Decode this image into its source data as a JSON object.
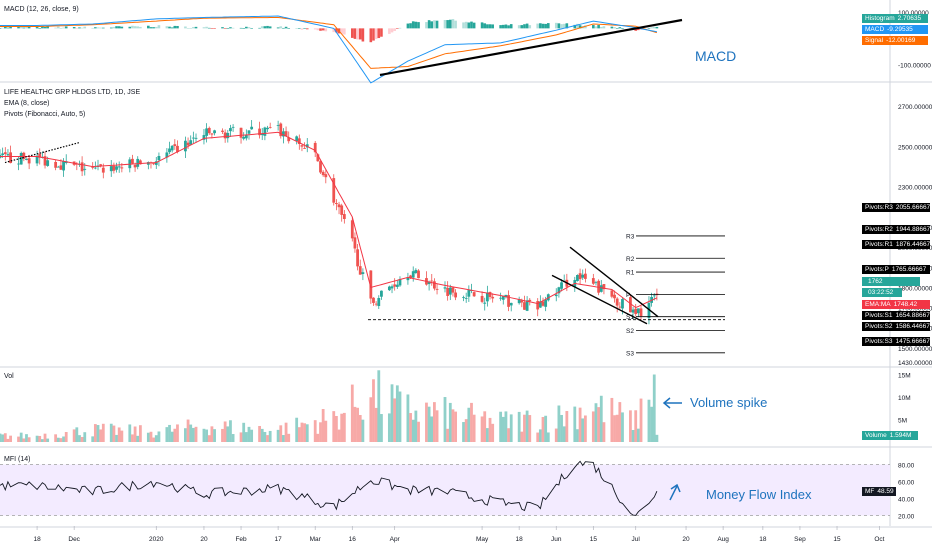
{
  "panes": {
    "macd": {
      "label": "MACD (12, 26, close, 9)",
      "annotation": "MACD",
      "axis_ticks": [
        "100.00000",
        "0.00000",
        "-100.00000"
      ],
      "legend": [
        {
          "key": "Histogram",
          "value": "2.70635",
          "color": "#26a69a"
        },
        {
          "key": "MACD",
          "value": "-9.29535",
          "color": "#2196f3"
        },
        {
          "key": "Signal",
          "value": "-12.00169",
          "color": "#ff6d00"
        }
      ]
    },
    "price": {
      "title": "LIFE HEALTHC GRP HLDGS LTD, 1D, JSE",
      "ema_label": "EMA (8, close)",
      "pivots_label": "Pivots (Fibonacci, Auto, 5)",
      "axis_ticks": [
        "2700.00000",
        "2500.00000",
        "2300.00000",
        "2100.00000",
        "2000.00000",
        "1900.00000",
        "1800.00000",
        "1700.00000",
        "1600.00000",
        "1500.00000",
        "1430.00000"
      ],
      "countdown": "03:22:52"
    },
    "volume": {
      "label": "Vol",
      "annotation": "Volume spike",
      "axis_ticks": [
        "15M",
        "10M",
        "5M"
      ],
      "legend": {
        "key": "Volume",
        "value": "1.594M",
        "color": "#26a69a"
      }
    },
    "mfi": {
      "label": "MFI (14)",
      "annotation": "Money Flow Index",
      "axis_ticks": [
        "80.00",
        "60.00",
        "40.00",
        "20.00"
      ],
      "legend": {
        "key": "MF",
        "value": "48.59",
        "color": "#131722"
      }
    }
  },
  "x_axis": [
    "18",
    "Dec",
    "2020",
    "20",
    "Feb",
    "17",
    "Mar",
    "16",
    "Apr",
    "May",
    "18",
    "Jun",
    "15",
    "Jul",
    "20",
    "Aug",
    "18",
    "Sep",
    "15",
    "Oct"
  ],
  "colors": {
    "up": "#26a69a",
    "down": "#ef5350",
    "ema": "#f23645",
    "macd": "#2196f3",
    "signal": "#ff6d00",
    "mfi_band": "#f3ebff",
    "annotation": "#1e73be"
  },
  "chart_data": [
    {
      "type": "line",
      "title": "MACD (12, 26, close, 9)",
      "x": [
        "2019-11-18",
        "2019-12-09",
        "2020-01-02",
        "2020-01-20",
        "2020-02-17",
        "2020-03-09",
        "2020-03-23",
        "2020-04-06",
        "2020-04-20",
        "2020-05-11",
        "2020-06-01",
        "2020-06-15",
        "2020-07-01",
        "2020-07-09"
      ],
      "series": [
        {
          "name": "MACD",
          "values": [
            8,
            12,
            26,
            30,
            34,
            0,
            -150,
            -90,
            -45,
            -40,
            -5,
            20,
            2,
            -9.3
          ]
        },
        {
          "name": "Signal",
          "values": [
            5,
            10,
            20,
            28,
            30,
            10,
            -110,
            -105,
            -70,
            -48,
            -18,
            12,
            6,
            -12.0
          ]
        },
        {
          "name": "Histogram",
          "values": [
            3,
            2,
            6,
            2,
            4,
            -10,
            -40,
            15,
            25,
            8,
            13,
            8,
            -4,
            2.7
          ]
        }
      ],
      "ylim": [
        -120,
        45
      ]
    },
    {
      "type": "candlestick",
      "title": "LIFE HEALTHC GRP HLDGS LTD, 1D, JSE",
      "x": [
        "2019-11-18",
        "2019-12-09",
        "2020-01-02",
        "2020-01-20",
        "2020-02-17",
        "2020-03-02",
        "2020-03-16",
        "2020-03-23",
        "2020-04-06",
        "2020-04-20",
        "2020-05-11",
        "2020-05-25",
        "2020-06-08",
        "2020-06-22",
        "2020-07-01",
        "2020-07-09"
      ],
      "series": [
        {
          "name": "Close",
          "values": [
            2440,
            2380,
            2430,
            2560,
            2580,
            2460,
            2020,
            1720,
            1880,
            1790,
            1740,
            1700,
            1860,
            1760,
            1660,
            1762
          ]
        },
        {
          "name": "EMA (8, close)",
          "values": [
            2450,
            2400,
            2420,
            2540,
            2570,
            2480,
            2150,
            1800,
            1850,
            1810,
            1760,
            1720,
            1820,
            1790,
            1700,
            1748.42
          ]
        }
      ],
      "pivots": {
        "R3": 2055.66667,
        "R2": 1944.88667,
        "R1": 1876.44667,
        "P": 1765.66667,
        "S1": 1654.88667,
        "S2": 1586.44667,
        "S3": 1475.66667
      },
      "last_close": 1762.0,
      "ylim": [
        1430,
        2780
      ]
    },
    {
      "type": "bar",
      "title": "Vol",
      "x": [
        "2019-11-18",
        "2019-12-09",
        "2020-01-02",
        "2020-01-20",
        "2020-02-17",
        "2020-03-09",
        "2020-03-23",
        "2020-04-06",
        "2020-04-20",
        "2020-05-11",
        "2020-06-01",
        "2020-06-15",
        "2020-07-01",
        "2020-07-08",
        "2020-07-09"
      ],
      "values": [
        1.5,
        3,
        2.5,
        4,
        3,
        6,
        12,
        8,
        7,
        5,
        6,
        9,
        5,
        15,
        1.594
      ],
      "unit": "M",
      "ylim": [
        0,
        16
      ]
    },
    {
      "type": "line",
      "title": "MFI (14)",
      "x": [
        "2019-11-18",
        "2019-12-09",
        "2020-01-02",
        "2020-01-20",
        "2020-02-17",
        "2020-03-09",
        "2020-03-23",
        "2020-04-06",
        "2020-04-20",
        "2020-05-11",
        "2020-05-25",
        "2020-06-08",
        "2020-06-15",
        "2020-07-01",
        "2020-07-09"
      ],
      "series": [
        {
          "name": "MFI",
          "values": [
            55,
            48,
            60,
            45,
            52,
            30,
            62,
            50,
            48,
            35,
            28,
            82,
            80,
            18,
            48.59
          ]
        }
      ],
      "ylim": [
        10,
        90
      ],
      "bands": [
        20,
        80
      ]
    }
  ]
}
